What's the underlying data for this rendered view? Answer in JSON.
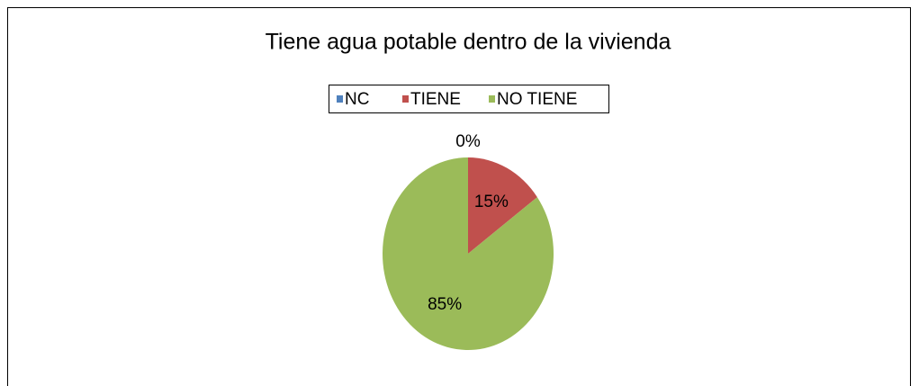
{
  "chart_data": {
    "type": "pie",
    "title": "Tiene agua potable dentro de la vivienda",
    "categories": [
      "NC",
      "TIENE",
      "NO TIENE"
    ],
    "values": [
      0,
      15,
      85
    ],
    "value_labels": [
      "0%",
      "15%",
      "85%"
    ],
    "colors": [
      "#4f81bd",
      "#c0504d",
      "#9bbb59"
    ],
    "legend": "top"
  }
}
